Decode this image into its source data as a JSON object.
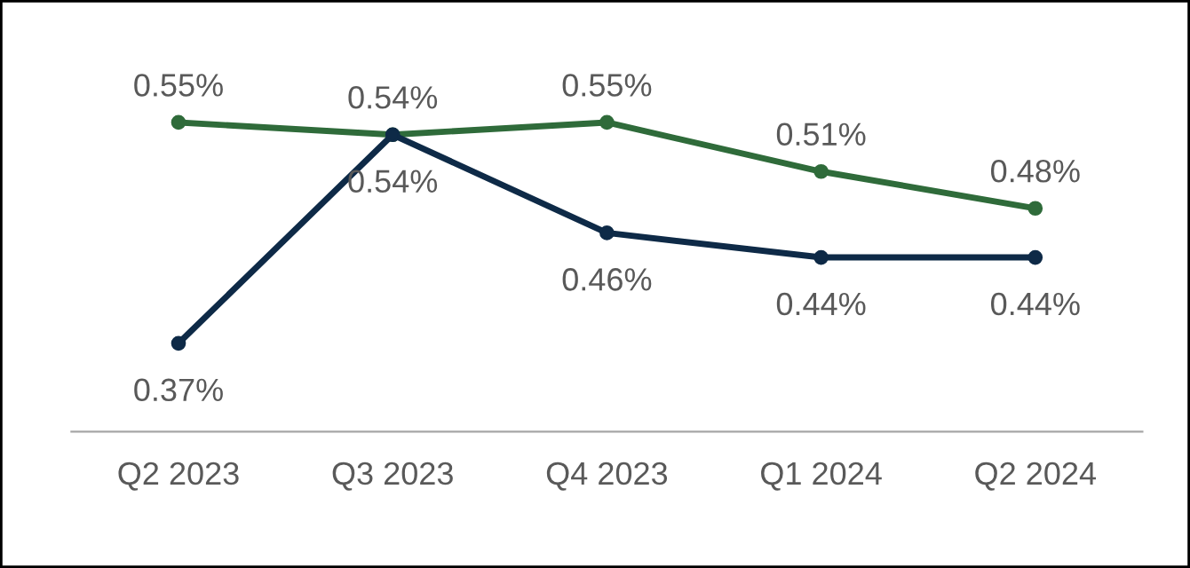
{
  "chart_data": {
    "type": "line",
    "categories": [
      "Q2 2023",
      "Q3 2023",
      "Q4 2023",
      "Q1 2024",
      "Q2 2024"
    ],
    "series": [
      {
        "color": "#2f6b3a",
        "values": [
          0.55,
          0.54,
          0.55,
          0.51,
          0.48
        ],
        "value_labels": [
          "0.55%",
          "0.54%",
          "0.55%",
          "0.51%",
          "0.48%"
        ]
      },
      {
        "color": "#0e2a47",
        "values": [
          0.37,
          0.54,
          0.46,
          0.44,
          0.44
        ],
        "value_labels": [
          "0.37%",
          "0.54%",
          "0.46%",
          "0.44%",
          "0.44%"
        ]
      }
    ],
    "tick_labels": "x",
    "grid": false,
    "legend": false,
    "marker": "circle",
    "line_style": "solid"
  }
}
